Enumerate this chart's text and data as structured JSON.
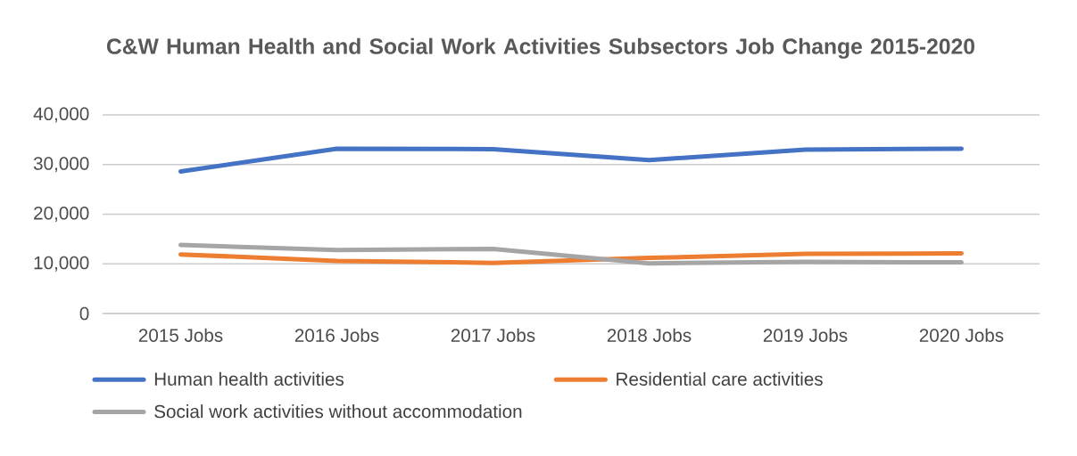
{
  "chart_data": {
    "type": "line",
    "title": "C&W Human Health and Social Work Activities Subsectors Job Change 2015-2020",
    "categories": [
      "2015 Jobs",
      "2016 Jobs",
      "2017 Jobs",
      "2018 Jobs",
      "2019 Jobs",
      "2020 Jobs"
    ],
    "series": [
      {
        "name": "Human health activities",
        "color": "#4472c4",
        "values": [
          28600,
          33200,
          33100,
          30900,
          33000,
          33200
        ]
      },
      {
        "name": "Residential care activities",
        "color": "#ed7d31",
        "values": [
          11900,
          10600,
          10200,
          11200,
          12000,
          12100
        ]
      },
      {
        "name": "Social work activities without accommodation",
        "color": "#a5a5a5",
        "values": [
          13800,
          12800,
          13000,
          10100,
          10400,
          10300
        ]
      }
    ],
    "ylim": [
      0,
      40000
    ],
    "yticks": [
      {
        "value": 0,
        "label": "0"
      },
      {
        "value": 10000,
        "label": "10,000"
      },
      {
        "value": 20000,
        "label": "20,000"
      },
      {
        "value": 30000,
        "label": "30,000"
      },
      {
        "value": 40000,
        "label": "40,000"
      }
    ],
    "grid": "y",
    "legend": "bottom",
    "marker": "none",
    "line_style": "solid"
  }
}
